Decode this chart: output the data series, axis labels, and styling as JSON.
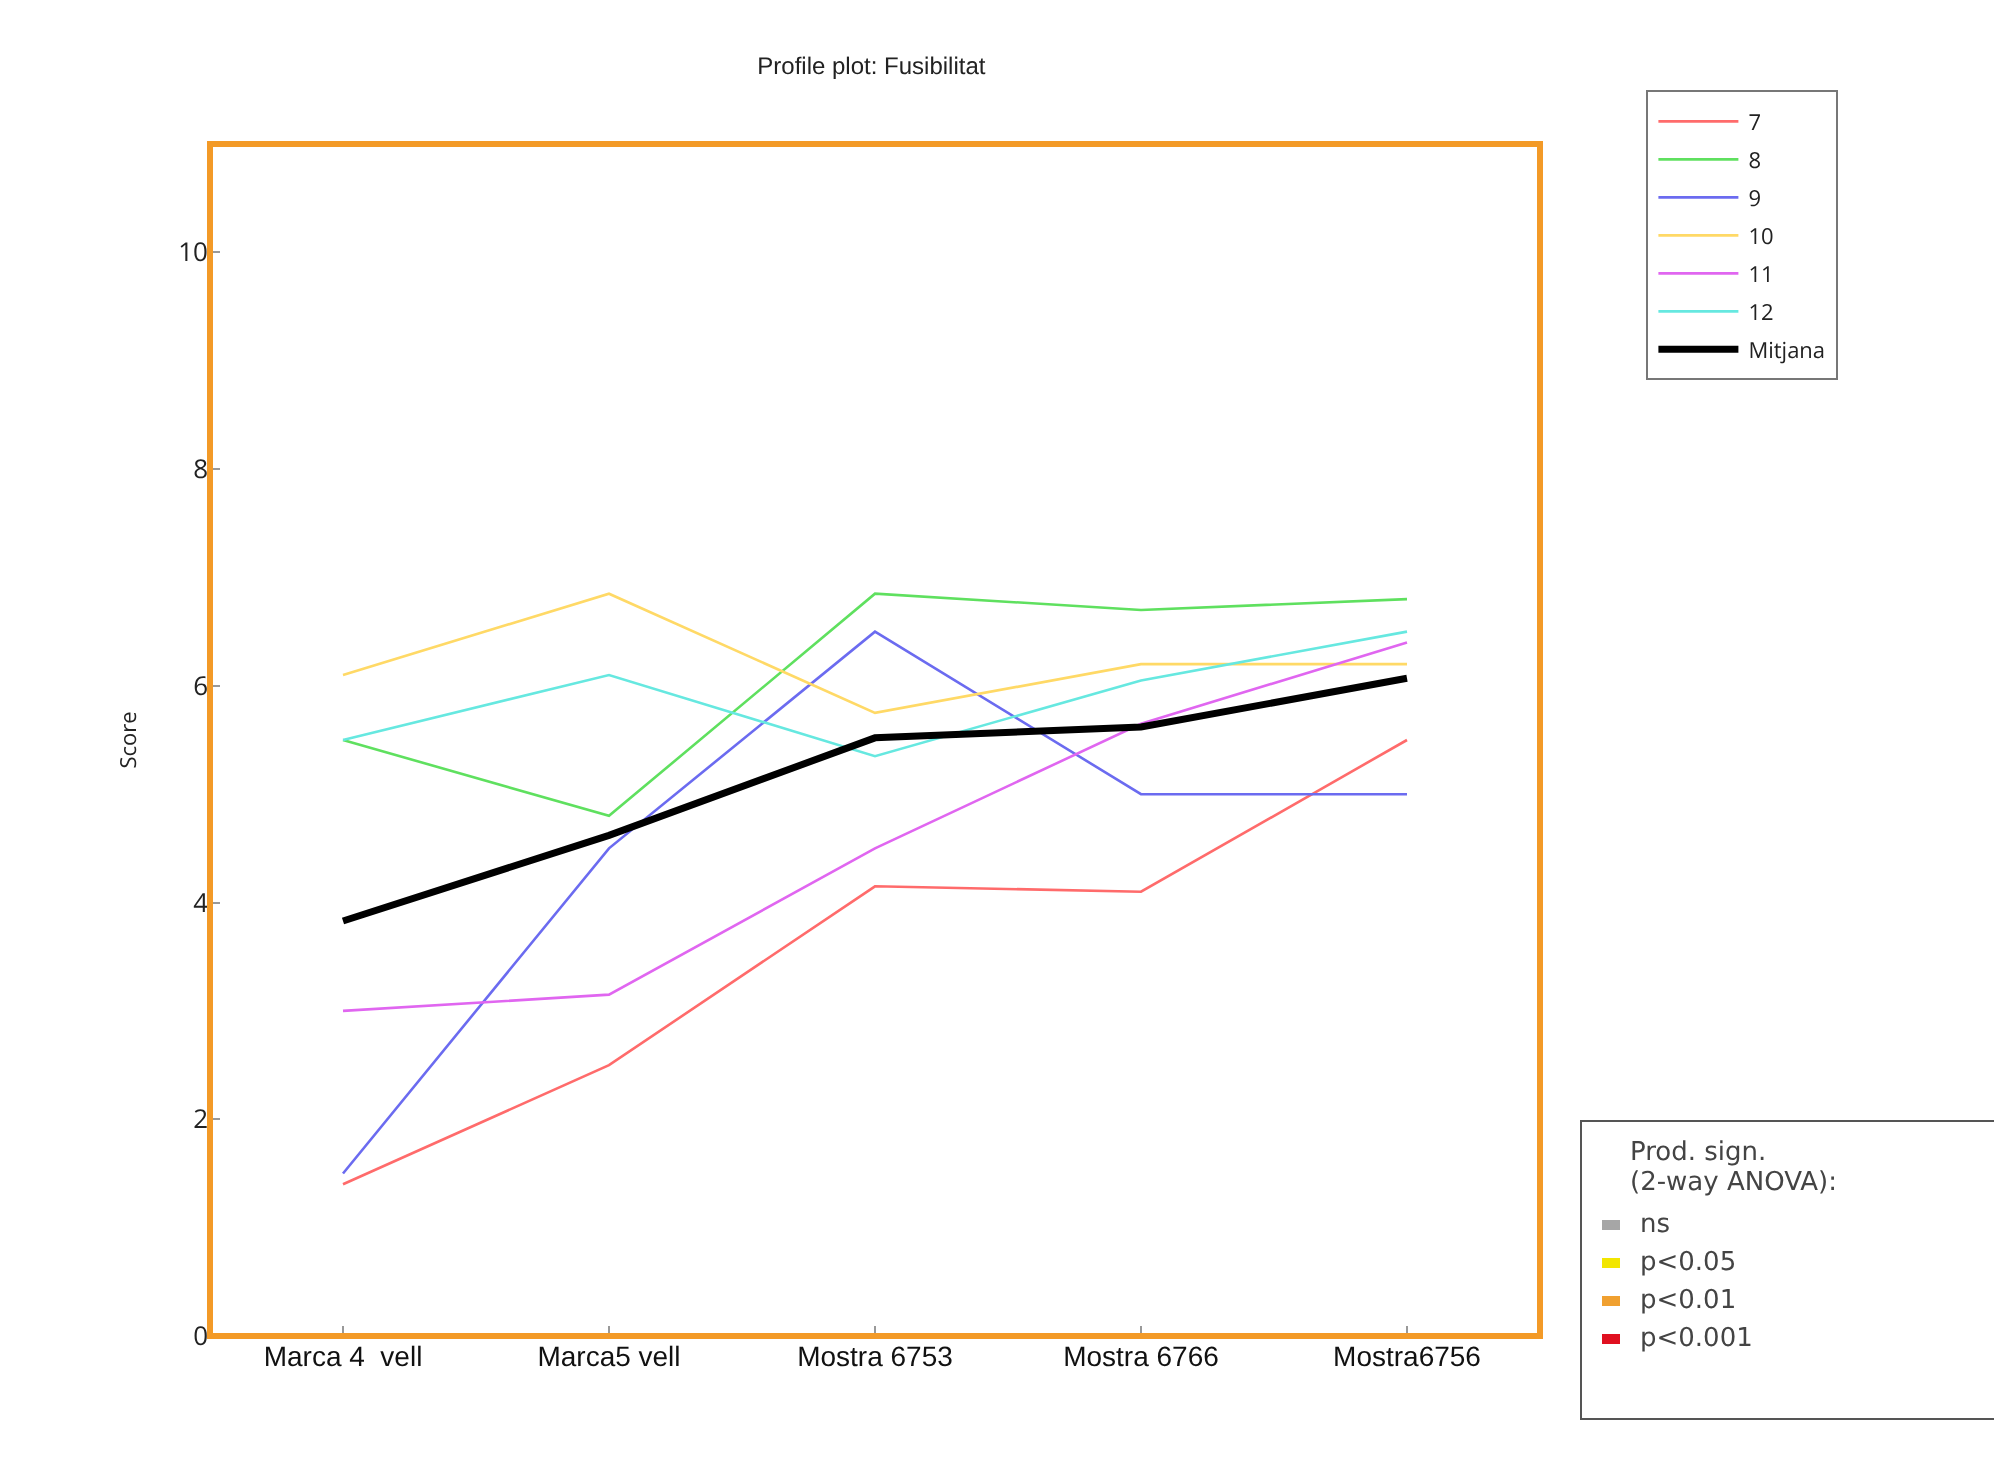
{
  "chart_data": {
    "type": "line",
    "title": "Profile plot: Fusibilitat",
    "ylabel": "Score",
    "categories": [
      "Marca 4  vell",
      "Marca5 vell",
      "Mostra 6753",
      "Mostra 6766",
      "Mostra6756"
    ],
    "series": [
      {
        "name": "7",
        "color": "#ff6b6b",
        "values": [
          1.4,
          2.5,
          4.15,
          4.1,
          5.5
        ]
      },
      {
        "name": "8",
        "color": "#5fe05f",
        "values": [
          5.5,
          4.8,
          6.85,
          6.7,
          6.8
        ]
      },
      {
        "name": "9",
        "color": "#6b6bf0",
        "values": [
          1.5,
          4.5,
          6.5,
          5.0,
          5.0
        ]
      },
      {
        "name": "10",
        "color": "#ffd966",
        "values": [
          6.1,
          6.85,
          5.75,
          6.2,
          6.2
        ]
      },
      {
        "name": "11",
        "color": "#e066f0",
        "values": [
          3.0,
          3.15,
          4.5,
          5.65,
          6.4
        ]
      },
      {
        "name": "12",
        "color": "#66e8e0",
        "values": [
          5.5,
          6.1,
          5.35,
          6.05,
          6.5
        ]
      },
      {
        "name": "Mitjana",
        "color": "#000000",
        "values": [
          3.83,
          4.62,
          5.52,
          5.62,
          6.07
        ]
      }
    ],
    "ylim": [
      0,
      11
    ],
    "yticks": [
      0,
      2,
      4,
      6,
      8,
      10
    ],
    "grid": false,
    "legend": "top right",
    "marker": "none",
    "line_style": "solid",
    "annotations": [
      "Prod. sign.\n(2-way ANOVA):",
      "ns",
      "p<0.05",
      "p<0.01",
      "p<0.001"
    ]
  }
}
